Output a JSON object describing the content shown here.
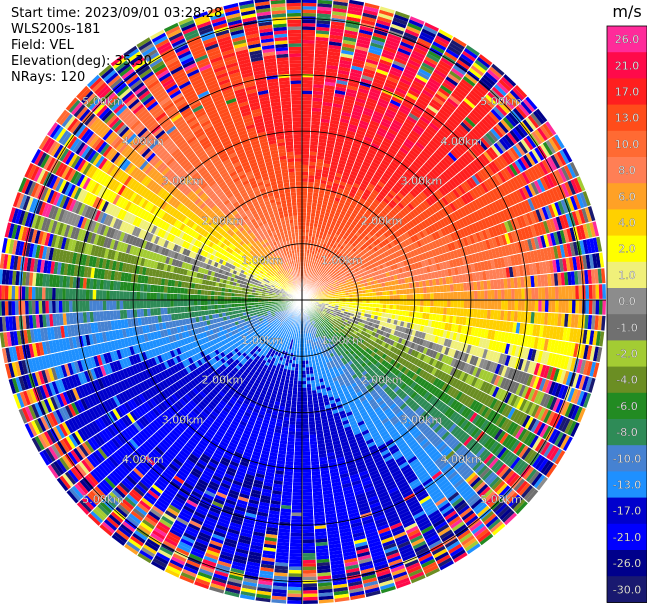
{
  "header": {
    "start_time": "Start time: 2023/09/01 03:28:28",
    "instrument": "WLS200s-181",
    "field": "Field: VEL",
    "elevation": "Elevation(deg): 35.30",
    "nrays": "NRays: 120"
  },
  "chart_data": {
    "type": "heatmap",
    "subtype": "polar-ppi",
    "field": "VEL",
    "units": "m/s",
    "nrays": 120,
    "max_range_km": 5.4,
    "range_rings_km": [
      1,
      2,
      3,
      4,
      5
    ],
    "ring_labels": [
      "1.00km",
      "2.00km",
      "3.00km",
      "4.00km",
      "5.00km"
    ],
    "colorbar": {
      "title": "m/s",
      "tick_labels": [
        "26.0",
        "21.0",
        "17.0",
        "13.0",
        "10.0",
        "8.0",
        "6.0",
        "4.0",
        "2.0",
        "1.0",
        "0.0",
        "-1.0",
        "-2.0",
        "-4.0",
        "-6.0",
        "-8.0",
        "-10.0",
        "-13.0",
        "-17.0",
        "-21.0",
        "-26.0",
        "-30.0"
      ],
      "colors": [
        "#ff2b9a",
        "#ff0a4a",
        "#ff1f1f",
        "#ff4c1a",
        "#ff6a33",
        "#ff7f55",
        "#ffa126",
        "#ffd000",
        "#ffff00",
        "#f0f07a",
        "#8c8c8c",
        "#707070",
        "#a3cc33",
        "#6b8e23",
        "#228b22",
        "#2e8b57",
        "#4682d2",
        "#1e90ff",
        "#0000cd",
        "#0000ff",
        "#00008b",
        "#191970"
      ]
    },
    "wind": {
      "speed_ms": 21,
      "toward_azimuth_deg": 20
    },
    "noise_start_km": {
      "min": 4.3,
      "max": 5.1
    }
  }
}
